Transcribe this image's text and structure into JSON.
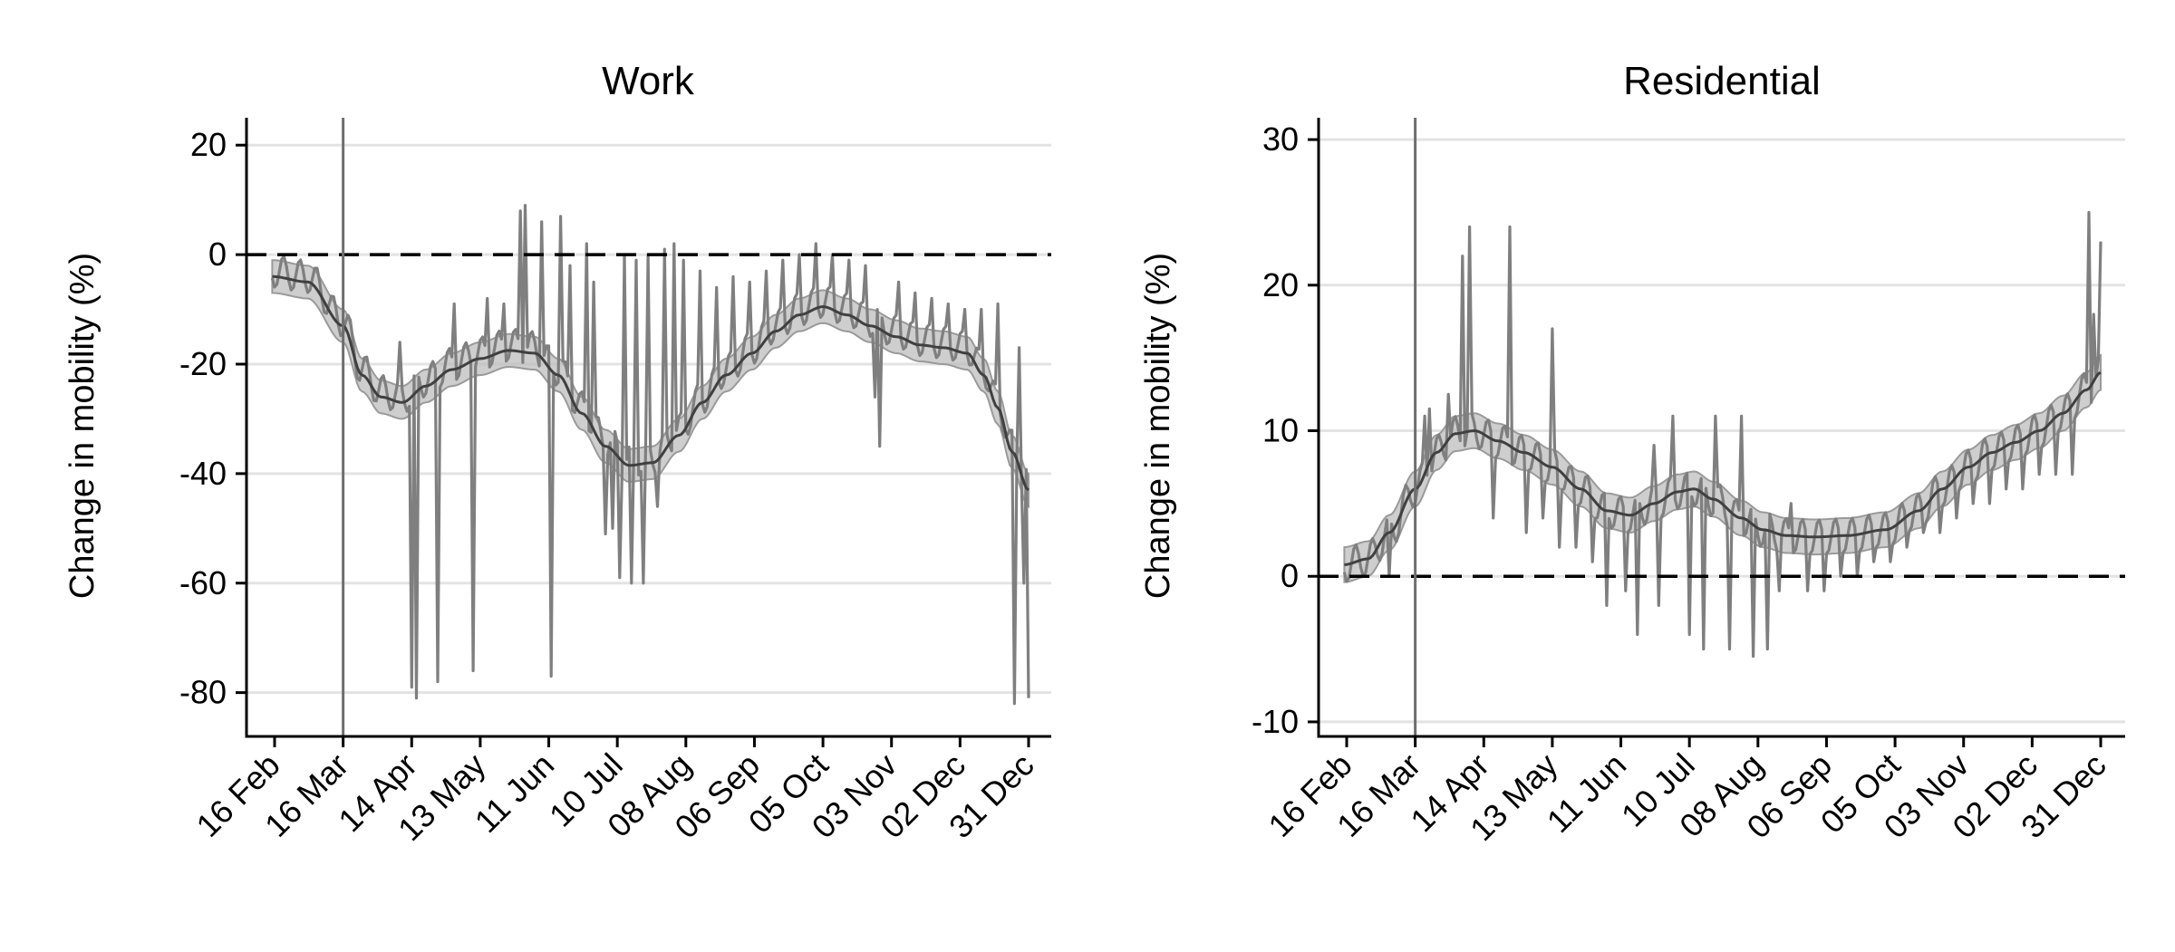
{
  "chart_data": [
    {
      "type": "line",
      "title": "Work",
      "ylabel": "Change in mobility (%)",
      "xlabel": "",
      "ylim": [
        -88,
        25
      ],
      "yticks": [
        -80,
        -60,
        -40,
        -20,
        0,
        20
      ],
      "ytick_labels": [
        "-80",
        "-60",
        "-40",
        "-20",
        "0",
        "20"
      ],
      "xticks": [
        "16 Feb",
        "16 Mar",
        "14 Apr",
        "13 May",
        "11 Jun",
        "10 Jul",
        "08 Aug",
        "06 Sep",
        "05 Oct",
        "03 Nov",
        "02 Dec",
        "31 Dec"
      ],
      "x_start": "15 Feb",
      "x_end": "31 Dec",
      "grid": "horizontal",
      "reference_line_y": 0,
      "event_date": "16 Mar",
      "series": [
        {
          "role": "daily",
          "color": "#7f7f7f"
        },
        {
          "role": "smoothed",
          "color": "#404040"
        },
        {
          "role": "band",
          "color": "#bdbdbd"
        }
      ],
      "smoothed_points": [
        [
          "15 Feb",
          -4
        ],
        [
          "01 Mar",
          -5
        ],
        [
          "16 Mar",
          -13
        ],
        [
          "24 Mar",
          -22
        ],
        [
          "01 Apr",
          -26
        ],
        [
          "10 Apr",
          -27
        ],
        [
          "20 Apr",
          -24
        ],
        [
          "01 May",
          -21
        ],
        [
          "13 May",
          -19
        ],
        [
          "25 May",
          -17.5
        ],
        [
          "05 Jun",
          -18
        ],
        [
          "15 Jun",
          -22
        ],
        [
          "25 Jun",
          -29
        ],
        [
          "05 Jul",
          -35
        ],
        [
          "15 Jul",
          -38.5
        ],
        [
          "25 Jul",
          -38
        ],
        [
          "05 Aug",
          -33
        ],
        [
          "15 Aug",
          -27
        ],
        [
          "25 Aug",
          -22
        ],
        [
          "05 Sep",
          -18
        ],
        [
          "15 Sep",
          -14
        ],
        [
          "25 Sep",
          -11
        ],
        [
          "05 Oct",
          -9.5
        ],
        [
          "15 Oct",
          -11
        ],
        [
          "25 Oct",
          -13
        ],
        [
          "05 Nov",
          -15
        ],
        [
          "15 Nov",
          -16.5
        ],
        [
          "25 Nov",
          -17
        ],
        [
          "05 Dec",
          -18
        ],
        [
          "12 Dec",
          -22
        ],
        [
          "18 Dec",
          -28
        ],
        [
          "24 Dec",
          -36
        ],
        [
          "31 Dec",
          -43
        ]
      ],
      "band_halfwidth": 3,
      "daily_base_offset": 1,
      "daily_wobble": 3,
      "daily_points": [
        [
          "14 Apr",
          -79
        ],
        [
          "16 Apr",
          -81
        ],
        [
          "25 Apr",
          -78
        ],
        [
          "10 May",
          -76
        ],
        [
          "30 May",
          8
        ],
        [
          "01 Jun",
          9
        ],
        [
          "08 Jun",
          6
        ],
        [
          "12 Jun",
          -77
        ],
        [
          "16 Jun",
          7
        ],
        [
          "30 Jun",
          -5
        ],
        [
          "05 Jul",
          -51
        ],
        [
          "08 Jul",
          -50
        ],
        [
          "11 Jul",
          -59
        ],
        [
          "16 Jul",
          -60
        ],
        [
          "21 Jul",
          -60
        ],
        [
          "27 Jul",
          -46
        ],
        [
          "03 Aug",
          2
        ],
        [
          "27 Oct",
          -26
        ],
        [
          "29 Oct",
          -35
        ],
        [
          "25 Dec",
          -82
        ],
        [
          "27 Dec",
          -17
        ],
        [
          "29 Dec",
          -60
        ],
        [
          "31 Dec",
          -81
        ]
      ],
      "daily_weekend_points": [
        [
          "09 Apr",
          -16
        ],
        [
          "02 May",
          -9
        ],
        [
          "16 May",
          -8
        ],
        [
          "23 May",
          -9
        ],
        [
          "20 Jun",
          -2
        ],
        [
          "27 Jun",
          2
        ],
        [
          "13 Jul",
          0
        ],
        [
          "18 Jul",
          -1
        ],
        [
          "23 Jul",
          0
        ],
        [
          "30 Jul",
          1
        ],
        [
          "07 Aug",
          -1
        ],
        [
          "14 Aug",
          -3
        ],
        [
          "21 Aug",
          -6
        ],
        [
          "28 Aug",
          -4
        ],
        [
          "04 Sep",
          -5
        ],
        [
          "11 Sep",
          -3
        ],
        [
          "18 Sep",
          -1
        ],
        [
          "25 Sep",
          0
        ],
        [
          "02 Oct",
          2
        ],
        [
          "09 Oct",
          0
        ],
        [
          "16 Oct",
          -1
        ],
        [
          "23 Oct",
          -2
        ],
        [
          "06 Nov",
          -5
        ],
        [
          "13 Nov",
          -7
        ],
        [
          "20 Nov",
          -8
        ],
        [
          "27 Nov",
          -9
        ],
        [
          "04 Dec",
          -10
        ],
        [
          "11 Dec",
          -10
        ],
        [
          "18 Dec",
          -9
        ]
      ]
    },
    {
      "type": "line",
      "title": "Residential",
      "ylabel": "Change in mobility (%)",
      "xlabel": "",
      "ylim": [
        -11,
        31.5
      ],
      "yticks": [
        -10,
        0,
        10,
        20,
        30
      ],
      "ytick_labels": [
        "-10",
        "0",
        "10",
        "20",
        "30"
      ],
      "xticks": [
        "16 Feb",
        "16 Mar",
        "14 Apr",
        "13 May",
        "11 Jun",
        "10 Jul",
        "08 Aug",
        "06 Sep",
        "05 Oct",
        "03 Nov",
        "02 Dec",
        "31 Dec"
      ],
      "x_start": "15 Feb",
      "x_end": "31 Dec",
      "grid": "horizontal",
      "reference_line_y": 0,
      "event_date": "16 Mar",
      "series": [
        {
          "role": "daily",
          "color": "#7f7f7f"
        },
        {
          "role": "smoothed",
          "color": "#404040"
        },
        {
          "role": "band",
          "color": "#bdbdbd"
        }
      ],
      "smoothed_points": [
        [
          "15 Feb",
          0.8
        ],
        [
          "25 Feb",
          1.2
        ],
        [
          "05 Mar",
          3
        ],
        [
          "16 Mar",
          6
        ],
        [
          "25 Mar",
          8.5
        ],
        [
          "02 Apr",
          9.8
        ],
        [
          "10 Apr",
          10
        ],
        [
          "20 Apr",
          9.3
        ],
        [
          "01 May",
          8.5
        ],
        [
          "13 May",
          7.5
        ],
        [
          "25 May",
          6
        ],
        [
          "05 Jun",
          4.5
        ],
        [
          "15 Jun",
          4.2
        ],
        [
          "25 Jun",
          5
        ],
        [
          "05 Jul",
          5.8
        ],
        [
          "12 Jul",
          6
        ],
        [
          "20 Jul",
          5.3
        ],
        [
          "01 Aug",
          4
        ],
        [
          "10 Aug",
          3.2
        ],
        [
          "20 Aug",
          2.8
        ],
        [
          "01 Sep",
          2.7
        ],
        [
          "15 Sep",
          2.8
        ],
        [
          "01 Oct",
          3.2
        ],
        [
          "15 Oct",
          4.5
        ],
        [
          "25 Oct",
          6
        ],
        [
          "05 Nov",
          7.5
        ],
        [
          "15 Nov",
          8.5
        ],
        [
          "25 Nov",
          9.2
        ],
        [
          "05 Dec",
          10
        ],
        [
          "15 Dec",
          11.2
        ],
        [
          "25 Dec",
          12.8
        ],
        [
          "31 Dec",
          14
        ]
      ],
      "band_halfwidth": 1.2,
      "daily_base_offset": 0,
      "daily_wobble": 1.2,
      "daily_points": [
        [
          "20 Mar",
          11
        ],
        [
          "22 Mar",
          11.5
        ],
        [
          "30 Mar",
          12.5
        ],
        [
          "05 Apr",
          22
        ],
        [
          "08 Apr",
          24
        ],
        [
          "25 Apr",
          24
        ],
        [
          "13 May",
          17
        ],
        [
          "05 Jun",
          -2
        ],
        [
          "18 Jun",
          -4
        ],
        [
          "25 Jun",
          9
        ],
        [
          "03 Jul",
          11
        ],
        [
          "10 Jul",
          -4
        ],
        [
          "16 Jul",
          -5
        ],
        [
          "21 Jul",
          11
        ],
        [
          "27 Jul",
          -5
        ],
        [
          "01 Aug",
          11
        ],
        [
          "06 Aug",
          -5.5
        ],
        [
          "12 Aug",
          -5
        ],
        [
          "17 Aug",
          -1
        ],
        [
          "22 Aug",
          5
        ],
        [
          "26 Dec",
          25
        ],
        [
          "28 Dec",
          18
        ],
        [
          "31 Dec",
          23
        ]
      ],
      "daily_weekend_points": [
        [
          "05 Mar",
          0
        ],
        [
          "18 Apr",
          4
        ],
        [
          "02 May",
          3
        ],
        [
          "09 May",
          4
        ],
        [
          "16 May",
          2
        ],
        [
          "23 May",
          2
        ],
        [
          "30 May",
          1
        ],
        [
          "13 Jun",
          -1
        ],
        [
          "27 Jun",
          -2
        ],
        [
          "29 Aug",
          -1
        ],
        [
          "05 Sep",
          -1
        ],
        [
          "12 Sep",
          0
        ],
        [
          "19 Sep",
          0
        ],
        [
          "26 Sep",
          1
        ],
        [
          "03 Oct",
          1
        ],
        [
          "10 Oct",
          2
        ],
        [
          "17 Oct",
          3
        ],
        [
          "24 Oct",
          3
        ],
        [
          "31 Oct",
          4
        ],
        [
          "07 Nov",
          5
        ],
        [
          "14 Nov",
          5
        ],
        [
          "21 Nov",
          6
        ],
        [
          "28 Nov",
          6
        ],
        [
          "05 Dec",
          7
        ],
        [
          "12 Dec",
          7
        ],
        [
          "19 Dec",
          7
        ]
      ]
    }
  ]
}
